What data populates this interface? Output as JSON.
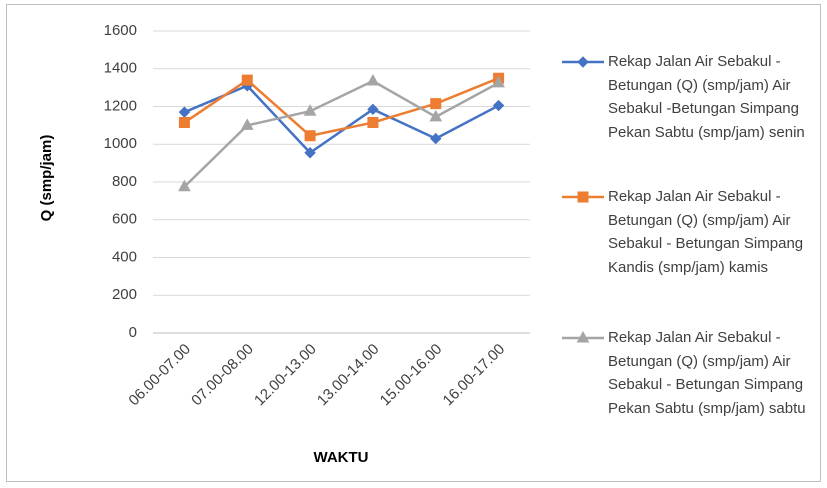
{
  "chart_data": {
    "type": "line",
    "y_label": "Q (smp/jam)",
    "x_label": "WAKTU",
    "categories": [
      "06.00-07.00",
      "07.00-08.00",
      "12.00-13.00",
      "13.00-14.00",
      "15.00-16.00",
      "16.00-17.00"
    ],
    "series": [
      {
        "name": "Rekap Jalan Air Sebakul - Betungan (Q) (smp/jam) Air Sebakul -Betungan Simpang Pekan Sabtu (smp/jam) senin",
        "color": "#4472c4",
        "marker": "diamond",
        "values": [
          1170,
          1310,
          955,
          1185,
          1030,
          1205
        ]
      },
      {
        "name": "Rekap Jalan Air Sebakul - Betungan (Q) (smp/jam) Air Sebakul - Betungan Simpang Kandis (smp/jam) kamis",
        "color": "#ed7d31",
        "marker": "square",
        "values": [
          1115,
          1340,
          1045,
          1115,
          1215,
          1350
        ]
      },
      {
        "name": "Rekap Jalan Air Sebakul - Betungan (Q) (smp/jam) Air Sebakul - Betungan Simpang Pekan Sabtu (smp/jam) sabtu",
        "color": "#a5a5a5",
        "marker": "triangle",
        "values": [
          775,
          1100,
          1175,
          1335,
          1145,
          1325
        ]
      }
    ],
    "ylim": [
      0,
      1600
    ],
    "yticks": [
      0,
      200,
      400,
      600,
      800,
      1000,
      1200,
      1400,
      1600
    ],
    "grid": true,
    "legend": "right"
  }
}
